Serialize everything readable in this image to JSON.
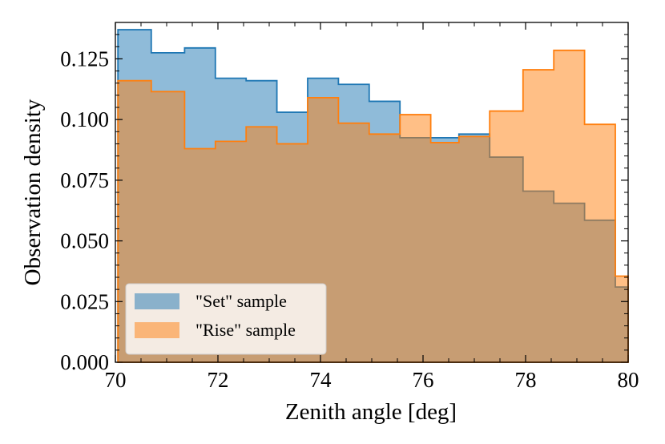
{
  "chart_data": {
    "type": "histogram",
    "title": "",
    "xlabel": "Zenith angle [deg]",
    "ylabel": "Observation density",
    "xlim": [
      70,
      80
    ],
    "ylim": [
      0.0,
      0.14
    ],
    "xticks": [
      70,
      72,
      74,
      76,
      78,
      80
    ],
    "xtick_labels": [
      "70",
      "72",
      "74",
      "76",
      "78",
      "80"
    ],
    "yticks": [
      0.0,
      0.025,
      0.05,
      0.075,
      0.1,
      0.125
    ],
    "ytick_labels": [
      "0.000",
      "0.025",
      "0.050",
      "0.075",
      "0.100",
      "0.125"
    ],
    "legend_position": "lower-left",
    "bin_edges": [
      70.05,
      70.7,
      71.35,
      71.95,
      72.55,
      73.15,
      73.75,
      74.35,
      74.95,
      75.55,
      76.15,
      76.7,
      77.3,
      77.95,
      78.55,
      79.15,
      79.75,
      80.0
    ],
    "series": [
      {
        "name": "\"Set\" sample",
        "fill": "#1f77b4",
        "fill_opacity": 0.5,
        "stroke": "#1f77b4",
        "values": [
          0.137,
          0.1275,
          0.1295,
          0.117,
          0.116,
          0.103,
          0.117,
          0.1145,
          0.1075,
          0.0925,
          0.0925,
          0.094,
          0.0845,
          0.0705,
          0.0655,
          0.0585,
          0.031
        ]
      },
      {
        "name": "\"Rise\" sample",
        "fill": "#ff7f0e",
        "fill_opacity": 0.5,
        "stroke": "#ff7f0e",
        "values": [
          0.116,
          0.1115,
          0.088,
          0.091,
          0.097,
          0.09,
          0.109,
          0.0985,
          0.094,
          0.102,
          0.0905,
          0.093,
          0.1035,
          0.1205,
          0.1285,
          0.098,
          0.0355
        ]
      }
    ]
  }
}
